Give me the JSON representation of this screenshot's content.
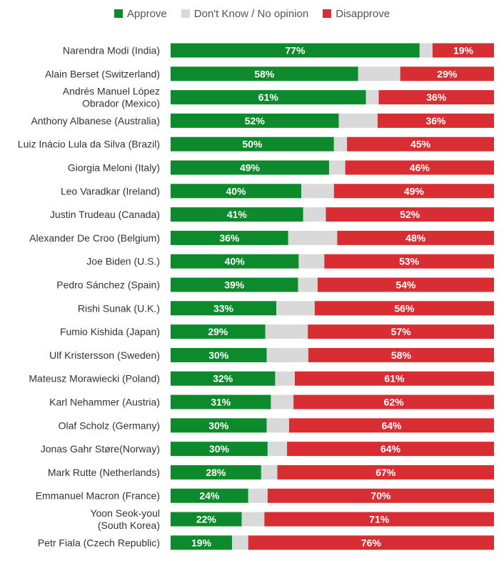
{
  "legend": [
    {
      "label": "Approve",
      "color": "#0d8a2c"
    },
    {
      "label": "Don't Know / No opinion",
      "color": "#d9d9d9"
    },
    {
      "label": "Disapprove",
      "color": "#d82e33"
    }
  ],
  "chart_data": {
    "type": "bar",
    "orientation": "horizontal",
    "stacked": true,
    "normalized_to": 100,
    "legend_position": "top-center",
    "grid": false,
    "categories": [
      [
        "Narendra Modi (India)"
      ],
      [
        "Alain Berset (Switzerland)"
      ],
      [
        "Andrés Manuel López",
        "Obrador (Mexico)"
      ],
      [
        "Anthony Albanese (Australia)"
      ],
      [
        "Luiz Inácio Lula da Silva (Brazil)"
      ],
      [
        "Giorgia Meloni (Italy)"
      ],
      [
        "Leo Varadkar (Ireland)"
      ],
      [
        "Justin Trudeau (Canada)"
      ],
      [
        "Alexander De Croo (Belgium)"
      ],
      [
        "Joe Biden (U.S.)"
      ],
      [
        "Pedro Sánchez (Spain)"
      ],
      [
        "Rishi Sunak (U.K.)"
      ],
      [
        "Fumio Kishida (Japan)"
      ],
      [
        "Ulf Kristersson (Sweden)"
      ],
      [
        "Mateusz Morawiecki (Poland)"
      ],
      [
        "Karl Nehammer (Austria)"
      ],
      [
        "Olaf Scholz (Germany)"
      ],
      [
        "Jonas Gahr Støre(Norway)"
      ],
      [
        "Mark Rutte (Netherlands)"
      ],
      [
        "Emmanuel Macron (France)"
      ],
      [
        "Yoon Seok-youl",
        "(South Korea)"
      ],
      [
        "Petr Fiala (Czech Republic)"
      ]
    ],
    "series": [
      {
        "name": "Approve",
        "color": "#0d8a2c",
        "show_labels": true,
        "values": [
          77,
          58,
          61,
          52,
          50,
          49,
          40,
          41,
          36,
          40,
          39,
          33,
          29,
          30,
          32,
          31,
          30,
          30,
          28,
          24,
          22,
          19
        ]
      },
      {
        "name": "Don't Know / No opinion",
        "color": "#d9d9d9",
        "show_labels": false,
        "values": [
          4,
          13,
          4,
          12,
          4,
          5,
          10,
          7,
          15,
          8,
          6,
          12,
          13,
          13,
          6,
          7,
          7,
          6,
          5,
          6,
          7,
          5
        ]
      },
      {
        "name": "Disapprove",
        "color": "#d82e33",
        "show_labels": true,
        "values": [
          19,
          29,
          36,
          36,
          45,
          46,
          49,
          52,
          48,
          53,
          54,
          56,
          57,
          58,
          61,
          62,
          64,
          64,
          67,
          70,
          71,
          76
        ]
      }
    ]
  }
}
